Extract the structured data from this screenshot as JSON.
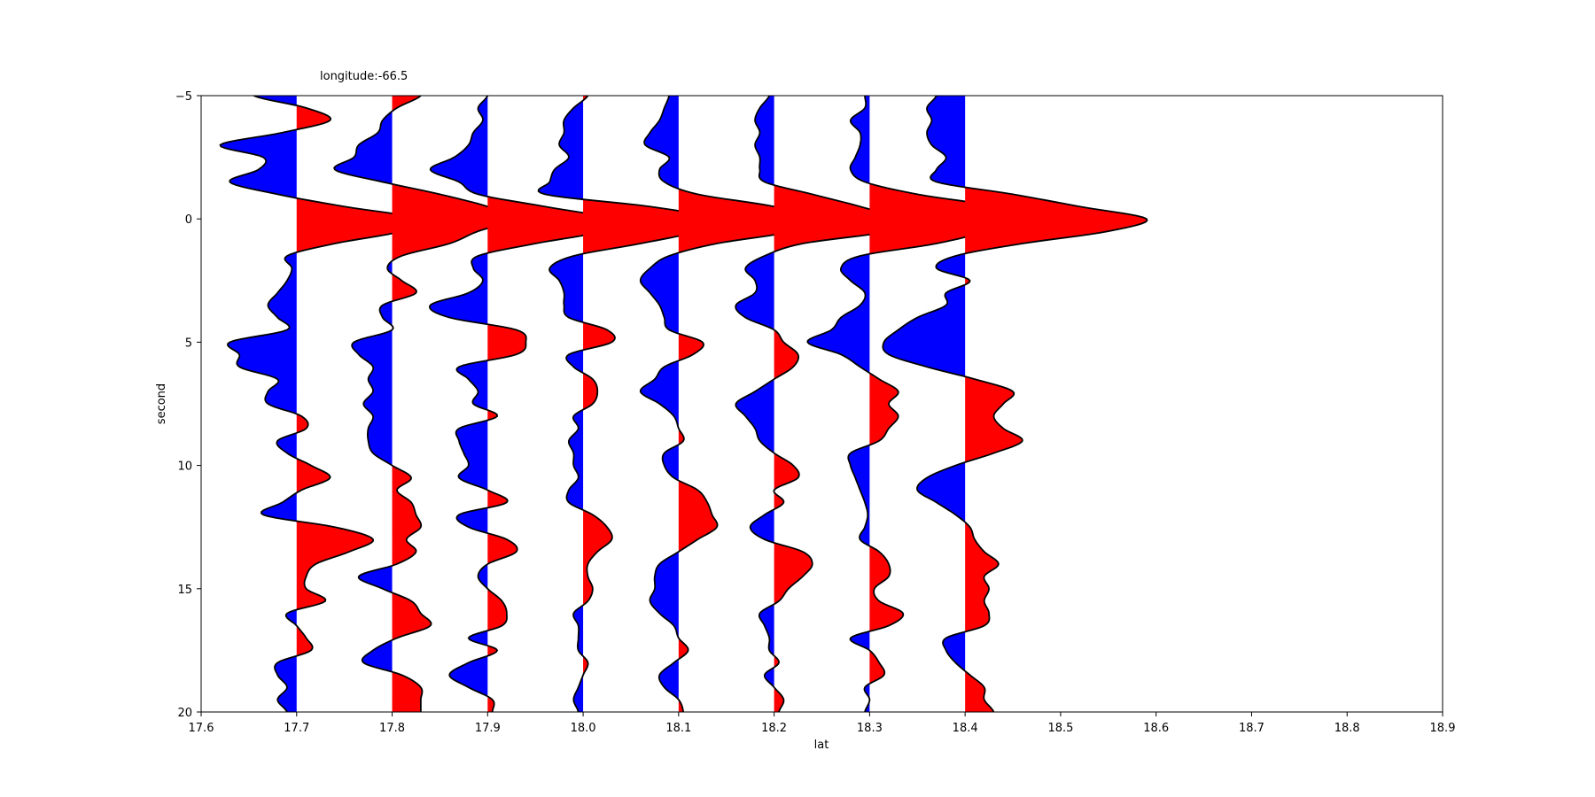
{
  "chart_data": {
    "type": "area",
    "title": "longitude:-66.5",
    "xlabel": "lat",
    "ylabel": "second",
    "xlim": [
      17.6,
      18.9
    ],
    "ylim": [
      20,
      -5
    ],
    "x_ticks": [
      "17.6",
      "17.7",
      "17.8",
      "17.9",
      "18.0",
      "18.1",
      "18.2",
      "18.3",
      "18.4",
      "18.5",
      "18.6",
      "18.7",
      "18.8",
      "18.9"
    ],
    "y_ticks": [
      "-5",
      "0",
      "5",
      "10",
      "15",
      "20"
    ],
    "grid": false,
    "legend": "none",
    "colors": {
      "positive": "#ff0000",
      "negative": "#0000ff",
      "outline": "#000000"
    },
    "t": [
      -5,
      -4.5,
      -4,
      -3.5,
      -3,
      -2.5,
      -2,
      -1.5,
      -1,
      -0.5,
      0,
      0.5,
      1,
      1.5,
      2,
      2.5,
      3,
      3.5,
      4,
      4.5,
      5,
      5.5,
      6,
      6.5,
      7,
      7.5,
      8,
      8.5,
      9,
      9.5,
      10,
      10.5,
      11,
      11.5,
      12,
      12.5,
      13,
      13.5,
      14,
      14.5,
      15,
      15.5,
      16,
      16.5,
      17,
      17.5,
      18,
      18.5,
      19,
      19.5,
      20
    ],
    "series": [
      {
        "x": 17.7,
        "values": [
          -0.045,
          0.01,
          0.035,
          -0.015,
          -0.08,
          -0.035,
          -0.04,
          -0.07,
          -0.02,
          0.05,
          0.13,
          0.11,
          0.04,
          -0.01,
          -0.005,
          -0.01,
          -0.02,
          -0.03,
          -0.02,
          -0.01,
          -0.07,
          -0.06,
          -0.06,
          -0.02,
          -0.03,
          -0.03,
          0.005,
          0.01,
          -0.02,
          -0.01,
          0.015,
          0.035,
          0.005,
          -0.015,
          -0.035,
          0.04,
          0.08,
          0.055,
          0.02,
          0.01,
          0.01,
          0.03,
          -0.01,
          0.0,
          0.01,
          0.015,
          -0.02,
          -0.02,
          -0.01,
          -0.02,
          -0.01
        ]
      },
      {
        "x": 17.8,
        "values": [
          0.03,
          0.005,
          -0.01,
          -0.015,
          -0.035,
          -0.04,
          -0.06,
          -0.01,
          0.05,
          0.1,
          0.13,
          0.09,
          0.06,
          0.01,
          -0.005,
          0.01,
          0.025,
          -0.01,
          -0.01,
          0.0,
          -0.04,
          -0.035,
          -0.02,
          -0.025,
          -0.02,
          -0.03,
          -0.02,
          -0.025,
          -0.025,
          -0.02,
          0.0,
          0.02,
          0.005,
          0.02,
          0.025,
          0.03,
          0.015,
          0.025,
          0.005,
          -0.035,
          -0.01,
          0.02,
          0.03,
          0.04,
          0.005,
          -0.02,
          -0.03,
          0.01,
          0.03,
          0.03,
          0.03
        ]
      },
      {
        "x": 17.9,
        "values": [
          0.0,
          -0.01,
          -0.005,
          -0.015,
          -0.02,
          -0.035,
          -0.06,
          -0.03,
          -0.01,
          0.06,
          0.13,
          0.12,
          0.05,
          -0.01,
          -0.015,
          -0.005,
          -0.02,
          -0.06,
          -0.04,
          0.03,
          0.04,
          0.03,
          -0.03,
          -0.02,
          -0.01,
          -0.015,
          0.01,
          -0.03,
          -0.03,
          -0.025,
          -0.02,
          -0.03,
          0.0,
          0.02,
          -0.03,
          -0.02,
          0.02,
          0.03,
          0.0,
          -0.01,
          0.0,
          0.015,
          0.02,
          0.015,
          -0.02,
          0.01,
          -0.02,
          -0.04,
          -0.02,
          0.005,
          0.005
        ]
      },
      {
        "x": 18.0,
        "values": [
          0.005,
          -0.01,
          -0.02,
          -0.02,
          -0.025,
          -0.015,
          -0.03,
          -0.035,
          -0.04,
          0.07,
          0.14,
          0.12,
          0.06,
          -0.01,
          -0.035,
          -0.025,
          -0.02,
          -0.02,
          -0.015,
          0.025,
          0.03,
          -0.015,
          -0.01,
          0.01,
          0.015,
          0.01,
          -0.01,
          -0.005,
          -0.015,
          -0.01,
          -0.01,
          -0.005,
          -0.015,
          -0.015,
          0.01,
          0.025,
          0.03,
          0.015,
          0.005,
          0.005,
          0.01,
          0.005,
          -0.01,
          -0.005,
          -0.005,
          -0.005,
          0.005,
          0.0,
          -0.005,
          -0.01,
          -0.005
        ]
      },
      {
        "x": 18.1,
        "values": [
          -0.01,
          -0.015,
          -0.02,
          -0.03,
          -0.035,
          -0.01,
          -0.02,
          -0.015,
          0.02,
          0.1,
          0.14,
          0.12,
          0.04,
          -0.01,
          -0.03,
          -0.04,
          -0.03,
          -0.02,
          -0.015,
          -0.01,
          0.025,
          0.015,
          -0.015,
          -0.025,
          -0.04,
          -0.02,
          -0.005,
          0.0,
          0.005,
          -0.015,
          -0.015,
          -0.005,
          0.02,
          0.03,
          0.035,
          0.04,
          0.02,
          0.0,
          -0.02,
          -0.025,
          -0.025,
          -0.03,
          -0.02,
          -0.005,
          0.0,
          0.01,
          -0.005,
          -0.02,
          -0.015,
          0.0,
          0.005
        ]
      },
      {
        "x": 18.2,
        "values": [
          -0.005,
          -0.015,
          -0.02,
          -0.015,
          -0.02,
          -0.015,
          -0.015,
          -0.01,
          0.04,
          0.09,
          0.13,
          0.12,
          0.03,
          -0.01,
          -0.03,
          -0.02,
          -0.02,
          -0.04,
          -0.03,
          0.0,
          0.01,
          0.025,
          0.02,
          0.0,
          -0.02,
          -0.04,
          -0.03,
          -0.02,
          -0.015,
          0.0,
          0.02,
          0.025,
          0.0,
          0.01,
          -0.01,
          -0.025,
          -0.01,
          0.03,
          0.04,
          0.03,
          0.015,
          0.005,
          -0.015,
          -0.01,
          -0.005,
          -0.005,
          0.005,
          -0.01,
          0.0,
          0.01,
          0.005
        ]
      },
      {
        "x": 18.3,
        "values": [
          -0.005,
          -0.005,
          -0.02,
          -0.01,
          -0.01,
          -0.015,
          -0.02,
          -0.005,
          0.05,
          0.13,
          0.14,
          0.12,
          0.07,
          -0.01,
          -0.03,
          -0.02,
          -0.005,
          -0.01,
          -0.03,
          -0.04,
          -0.065,
          -0.03,
          -0.01,
          0.01,
          0.03,
          0.02,
          0.03,
          0.02,
          0.01,
          -0.02,
          -0.02,
          -0.015,
          -0.01,
          -0.005,
          -0.002,
          -0.005,
          -0.01,
          0.01,
          0.02,
          0.02,
          0.005,
          0.01,
          0.035,
          0.02,
          -0.02,
          0.0,
          0.01,
          0.015,
          -0.005,
          0.0,
          -0.005
        ]
      },
      {
        "x": 18.4,
        "values": [
          -0.03,
          -0.04,
          -0.035,
          -0.04,
          -0.035,
          -0.02,
          -0.03,
          -0.03,
          0.05,
          0.12,
          0.19,
          0.15,
          0.06,
          -0.01,
          -0.03,
          0.005,
          -0.02,
          -0.02,
          -0.05,
          -0.07,
          -0.085,
          -0.08,
          -0.04,
          0.01,
          0.05,
          0.04,
          0.03,
          0.04,
          0.06,
          0.03,
          -0.01,
          -0.04,
          -0.05,
          -0.03,
          -0.01,
          0.005,
          0.01,
          0.02,
          0.035,
          0.02,
          0.025,
          0.02,
          0.025,
          0.02,
          -0.02,
          -0.02,
          -0.01,
          0.005,
          0.02,
          0.02,
          0.03
        ]
      }
    ]
  }
}
